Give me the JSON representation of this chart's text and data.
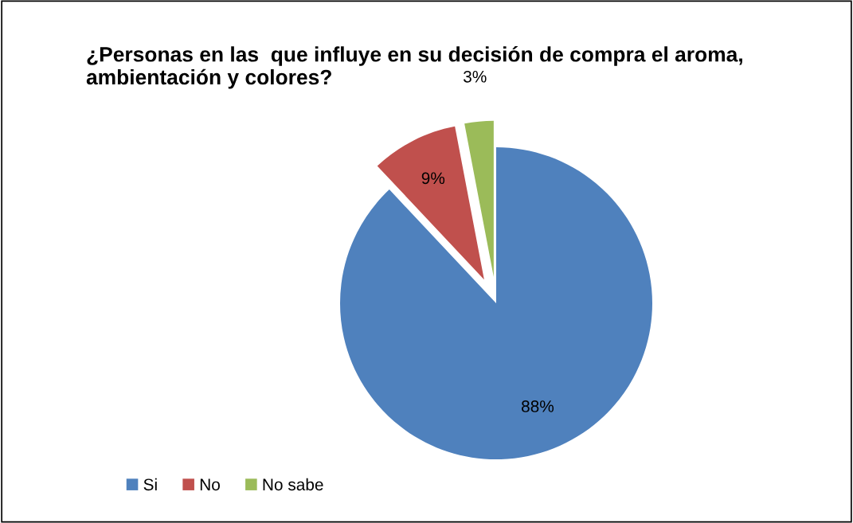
{
  "chart_data": {
    "type": "pie",
    "title": "¿Personas en las  que influye en su decisión de compra el aroma, ambientación y colores?",
    "categories": [
      "Si",
      "No",
      "No sabe"
    ],
    "values": [
      88,
      9,
      3
    ],
    "colors": [
      "#4f81bd",
      "#c0504d",
      "#9bbb59"
    ],
    "value_labels": [
      "88%",
      "9%",
      "3%"
    ],
    "legend": "bottom left"
  }
}
